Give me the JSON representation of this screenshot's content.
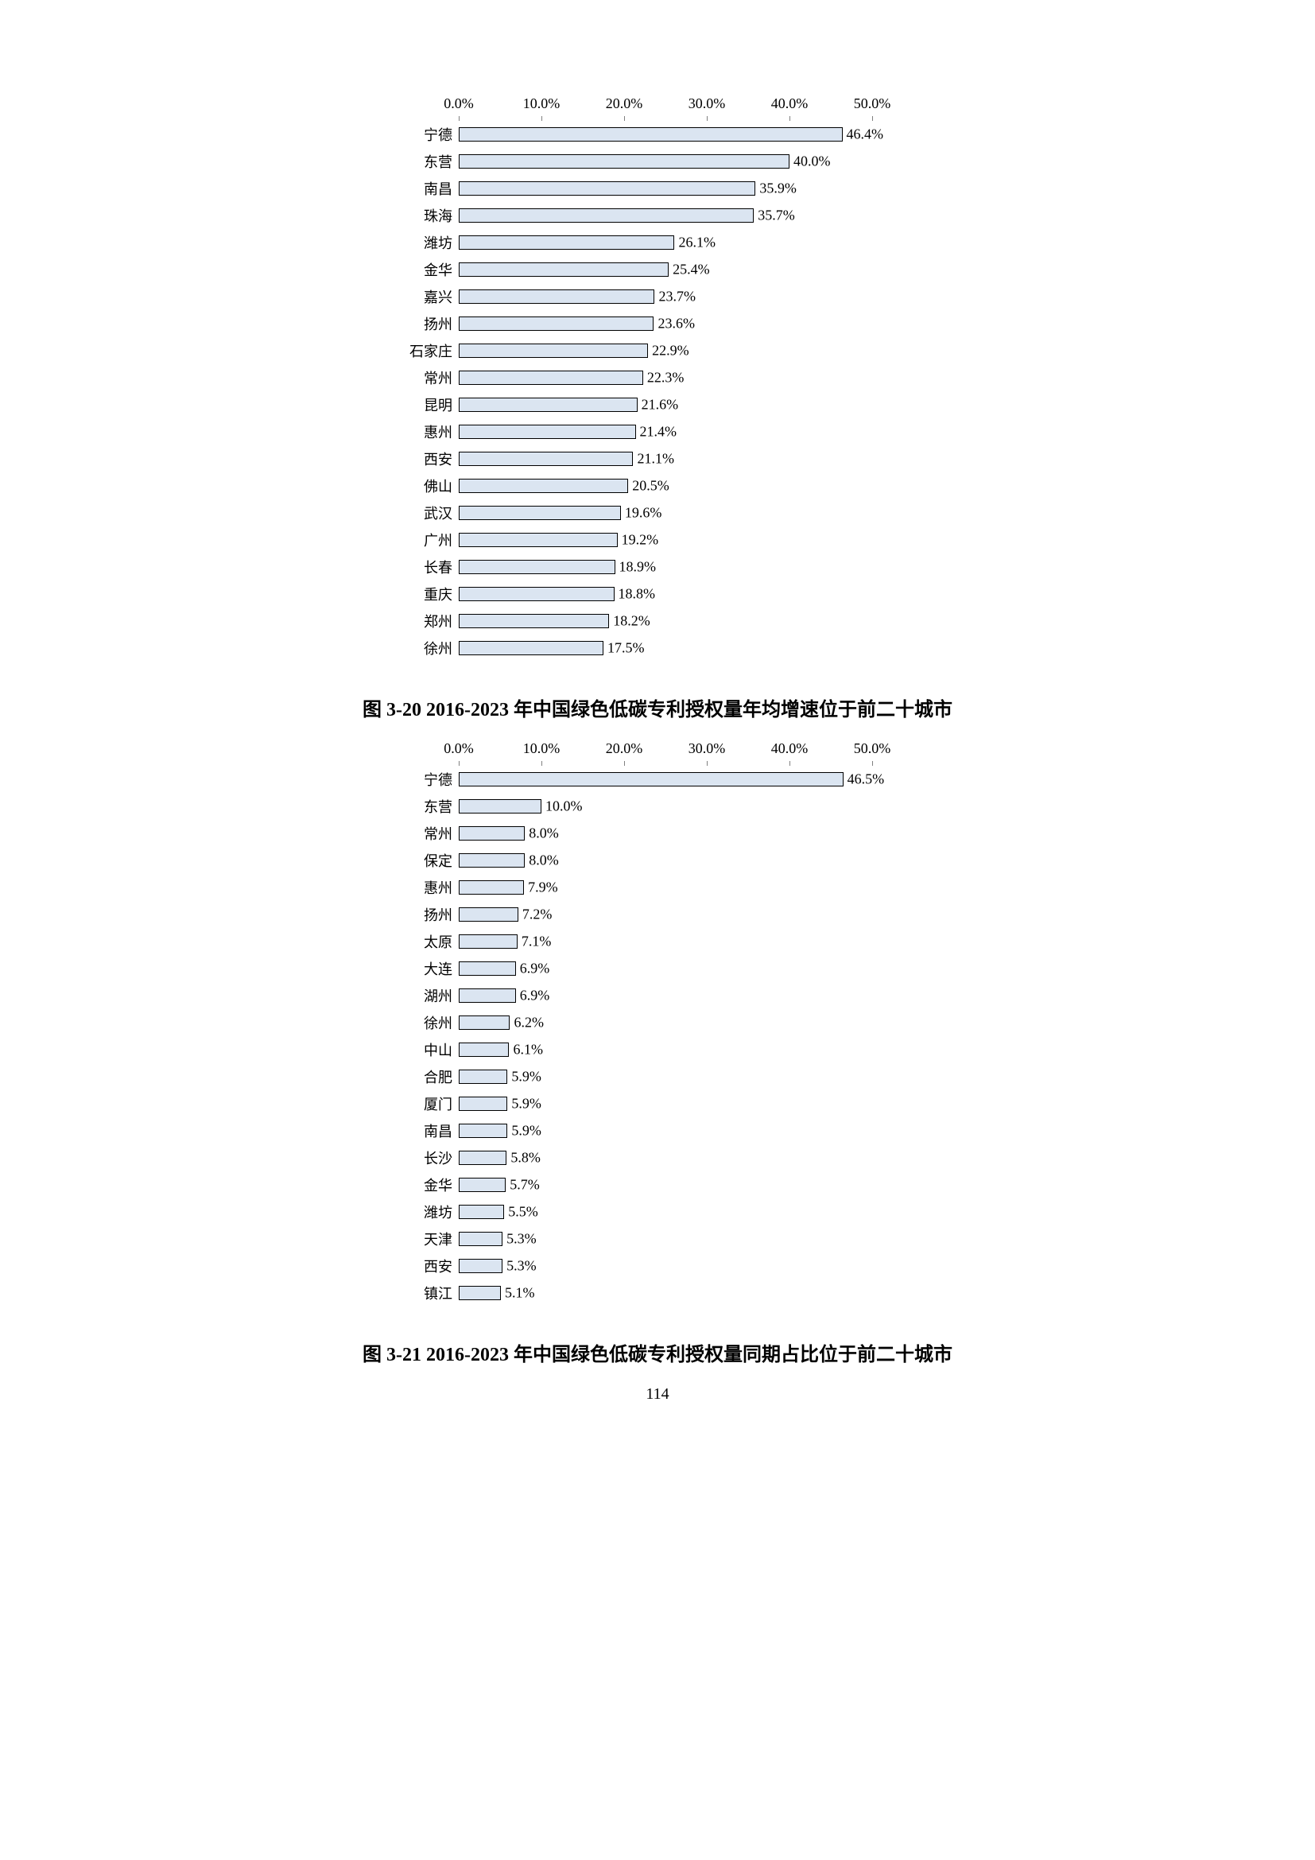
{
  "page_number": "114",
  "chart1": {
    "type": "bar",
    "axis_ticks": [
      "0.0%",
      "10.0%",
      "20.0%",
      "30.0%",
      "40.0%",
      "50.0%"
    ],
    "xmax": 50.0,
    "bar_fill": "#dbe5f1",
    "bar_stroke": "#000000",
    "bar_stroke_width": 1,
    "axis_font_size": 18,
    "label_font_size": 18,
    "rows": [
      {
        "cat": "宁德",
        "val": 46.4,
        "label": "46.4%"
      },
      {
        "cat": "东营",
        "val": 40.0,
        "label": "40.0%"
      },
      {
        "cat": "南昌",
        "val": 35.9,
        "label": "35.9%"
      },
      {
        "cat": "珠海",
        "val": 35.7,
        "label": "35.7%"
      },
      {
        "cat": "潍坊",
        "val": 26.1,
        "label": "26.1%"
      },
      {
        "cat": "金华",
        "val": 25.4,
        "label": "25.4%"
      },
      {
        "cat": "嘉兴",
        "val": 23.7,
        "label": "23.7%"
      },
      {
        "cat": "扬州",
        "val": 23.6,
        "label": "23.6%"
      },
      {
        "cat": "石家庄",
        "val": 22.9,
        "label": "22.9%"
      },
      {
        "cat": "常州",
        "val": 22.3,
        "label": "22.3%"
      },
      {
        "cat": "昆明",
        "val": 21.6,
        "label": "21.6%"
      },
      {
        "cat": "惠州",
        "val": 21.4,
        "label": "21.4%"
      },
      {
        "cat": "西安",
        "val": 21.1,
        "label": "21.1%"
      },
      {
        "cat": "佛山",
        "val": 20.5,
        "label": "20.5%"
      },
      {
        "cat": "武汉",
        "val": 19.6,
        "label": "19.6%"
      },
      {
        "cat": "广州",
        "val": 19.2,
        "label": "19.2%"
      },
      {
        "cat": "长春",
        "val": 18.9,
        "label": "18.9%"
      },
      {
        "cat": "重庆",
        "val": 18.8,
        "label": "18.8%"
      },
      {
        "cat": "郑州",
        "val": 18.2,
        "label": "18.2%"
      },
      {
        "cat": "徐州",
        "val": 17.5,
        "label": "17.5%"
      }
    ],
    "caption": "图 3-20 2016-2023 年中国绿色低碳专利授权量年均增速位于前二十城市"
  },
  "chart2": {
    "type": "bar",
    "axis_ticks": [
      "0.0%",
      "10.0%",
      "20.0%",
      "30.0%",
      "40.0%",
      "50.0%"
    ],
    "xmax": 50.0,
    "bar_fill": "#dbe5f1",
    "bar_stroke": "#000000",
    "bar_stroke_width": 1,
    "axis_font_size": 18,
    "label_font_size": 18,
    "rows": [
      {
        "cat": "宁德",
        "val": 46.5,
        "label": "46.5%"
      },
      {
        "cat": "东营",
        "val": 10.0,
        "label": "10.0%"
      },
      {
        "cat": "常州",
        "val": 8.0,
        "label": "8.0%"
      },
      {
        "cat": "保定",
        "val": 8.0,
        "label": "8.0%"
      },
      {
        "cat": "惠州",
        "val": 7.9,
        "label": "7.9%"
      },
      {
        "cat": "扬州",
        "val": 7.2,
        "label": "7.2%"
      },
      {
        "cat": "太原",
        "val": 7.1,
        "label": "7.1%"
      },
      {
        "cat": "大连",
        "val": 6.9,
        "label": "6.9%"
      },
      {
        "cat": "湖州",
        "val": 6.9,
        "label": "6.9%"
      },
      {
        "cat": "徐州",
        "val": 6.2,
        "label": "6.2%"
      },
      {
        "cat": "中山",
        "val": 6.1,
        "label": "6.1%"
      },
      {
        "cat": "合肥",
        "val": 5.9,
        "label": "5.9%"
      },
      {
        "cat": "厦门",
        "val": 5.9,
        "label": "5.9%"
      },
      {
        "cat": "南昌",
        "val": 5.9,
        "label": "5.9%"
      },
      {
        "cat": "长沙",
        "val": 5.8,
        "label": "5.8%"
      },
      {
        "cat": "金华",
        "val": 5.7,
        "label": "5.7%"
      },
      {
        "cat": "潍坊",
        "val": 5.5,
        "label": "5.5%"
      },
      {
        "cat": "天津",
        "val": 5.3,
        "label": "5.3%"
      },
      {
        "cat": "西安",
        "val": 5.3,
        "label": "5.3%"
      },
      {
        "cat": "镇江",
        "val": 5.1,
        "label": "5.1%"
      }
    ],
    "caption": "图 3-21 2016-2023 年中国绿色低碳专利授权量同期占比位于前二十城市"
  }
}
